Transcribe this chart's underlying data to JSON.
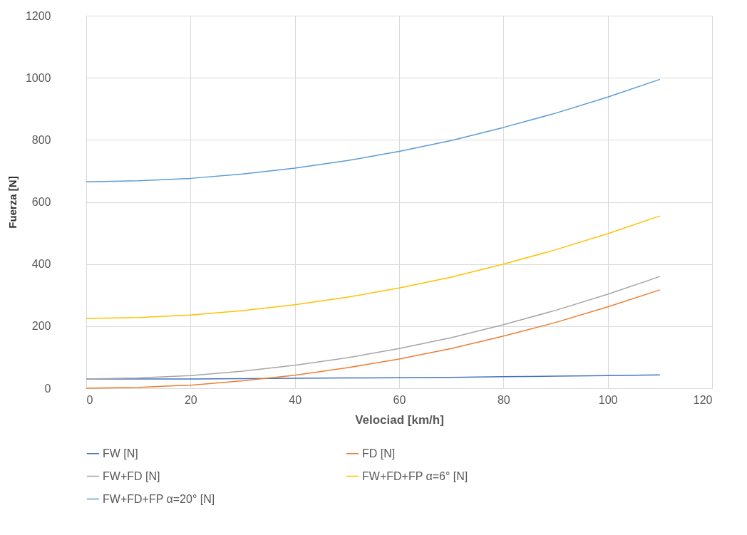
{
  "chart_data": {
    "type": "line",
    "xlabel": "Velociad [km/h]",
    "ylabel": "Fuerza [N]",
    "x": [
      0,
      10,
      20,
      30,
      40,
      50,
      60,
      70,
      80,
      90,
      100,
      110
    ],
    "xlim": [
      0,
      120
    ],
    "xticks": [
      0,
      20,
      40,
      60,
      80,
      100,
      120
    ],
    "ylim": [
      0,
      1200
    ],
    "yticks": [
      0,
      200,
      400,
      600,
      800,
      1000,
      1200
    ],
    "grid": true,
    "legend": "bottom",
    "marker": "none",
    "line_style": "solid",
    "series": [
      {
        "name": "FW [N]",
        "color": "#4472c4",
        "values": [
          30,
          30,
          30,
          31,
          32,
          33,
          34,
          35,
          37,
          39,
          41,
          43
        ]
      },
      {
        "name": "FD [N]",
        "color": "#ed7d31",
        "values": [
          0,
          3,
          10,
          24,
          42,
          66,
          94,
          128,
          168,
          212,
          262,
          317
        ]
      },
      {
        "name": "FW+FD [N]",
        "color": "#a5a5a5",
        "values": [
          30,
          33,
          41,
          55,
          74,
          98,
          128,
          163,
          205,
          251,
          303,
          360
        ]
      },
      {
        "name": "FW+FD+FP  α=6° [N]",
        "color": "#ffc000",
        "values": [
          225,
          228,
          236,
          250,
          269,
          293,
          323,
          358,
          400,
          446,
          498,
          555
        ]
      },
      {
        "name": "FW+FD+FP α=20° [N]",
        "color": "#5b9bd5",
        "values": [
          665,
          668,
          676,
          690,
          709,
          733,
          763,
          798,
          840,
          886,
          938,
          995
        ]
      }
    ]
  }
}
